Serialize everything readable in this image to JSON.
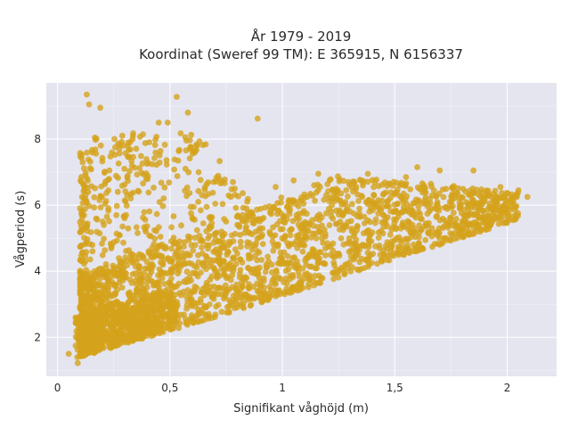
{
  "chart_data": {
    "type": "scatter",
    "title_line1": "År 1979 - 2019",
    "title_line2": "Koordinat (Sweref 99 TM): E 365915, N 6156337",
    "xlabel": "Signifikant våghöjd (m)",
    "ylabel": "Vågperiod (s)",
    "xlim": [
      -0.05,
      2.22
    ],
    "ylim": [
      0.82,
      9.7
    ],
    "x_ticks": [
      0,
      0.5,
      1,
      1.5,
      2
    ],
    "x_tick_labels": [
      "0",
      "0,5",
      "1",
      "1,5",
      "2"
    ],
    "y_ticks": [
      2,
      4,
      6,
      8
    ],
    "y_tick_labels": [
      "2",
      "4",
      "6",
      "8"
    ],
    "grid": true,
    "legend": "none",
    "colors": {
      "marker": "#d4a21c",
      "plot_background": "#e5e5f0",
      "grid": "#ffffff"
    },
    "outliers": [
      {
        "x": 0.13,
        "y": 9.35
      },
      {
        "x": 0.14,
        "y": 9.05
      },
      {
        "x": 0.19,
        "y": 8.95
      },
      {
        "x": 0.53,
        "y": 9.28
      },
      {
        "x": 0.58,
        "y": 8.8
      },
      {
        "x": 0.89,
        "y": 8.62
      },
      {
        "x": 0.45,
        "y": 8.5
      },
      {
        "x": 0.49,
        "y": 8.5
      },
      {
        "x": 1.16,
        "y": 6.95
      },
      {
        "x": 1.32,
        "y": 6.7
      },
      {
        "x": 1.38,
        "y": 6.95
      },
      {
        "x": 1.55,
        "y": 6.85
      },
      {
        "x": 1.6,
        "y": 7.15
      },
      {
        "x": 1.7,
        "y": 7.05
      },
      {
        "x": 1.85,
        "y": 7.05
      },
      {
        "x": 1.97,
        "y": 6.55
      },
      {
        "x": 2.05,
        "y": 6.45
      },
      {
        "x": 2.09,
        "y": 6.25
      },
      {
        "x": 2.02,
        "y": 6.2
      },
      {
        "x": 1.92,
        "y": 6.3
      },
      {
        "x": 1.78,
        "y": 6.35
      },
      {
        "x": 0.84,
        "y": 5.9
      },
      {
        "x": 1.05,
        "y": 6.75
      },
      {
        "x": 1.24,
        "y": 6.5
      },
      {
        "x": 0.97,
        "y": 6.55
      },
      {
        "x": 0.1,
        "y": 3.95
      },
      {
        "x": 0.1,
        "y": 3.3
      },
      {
        "x": 0.08,
        "y": 2.6
      },
      {
        "x": 0.05,
        "y": 1.5
      },
      {
        "x": 0.09,
        "y": 1.22
      }
    ]
  }
}
